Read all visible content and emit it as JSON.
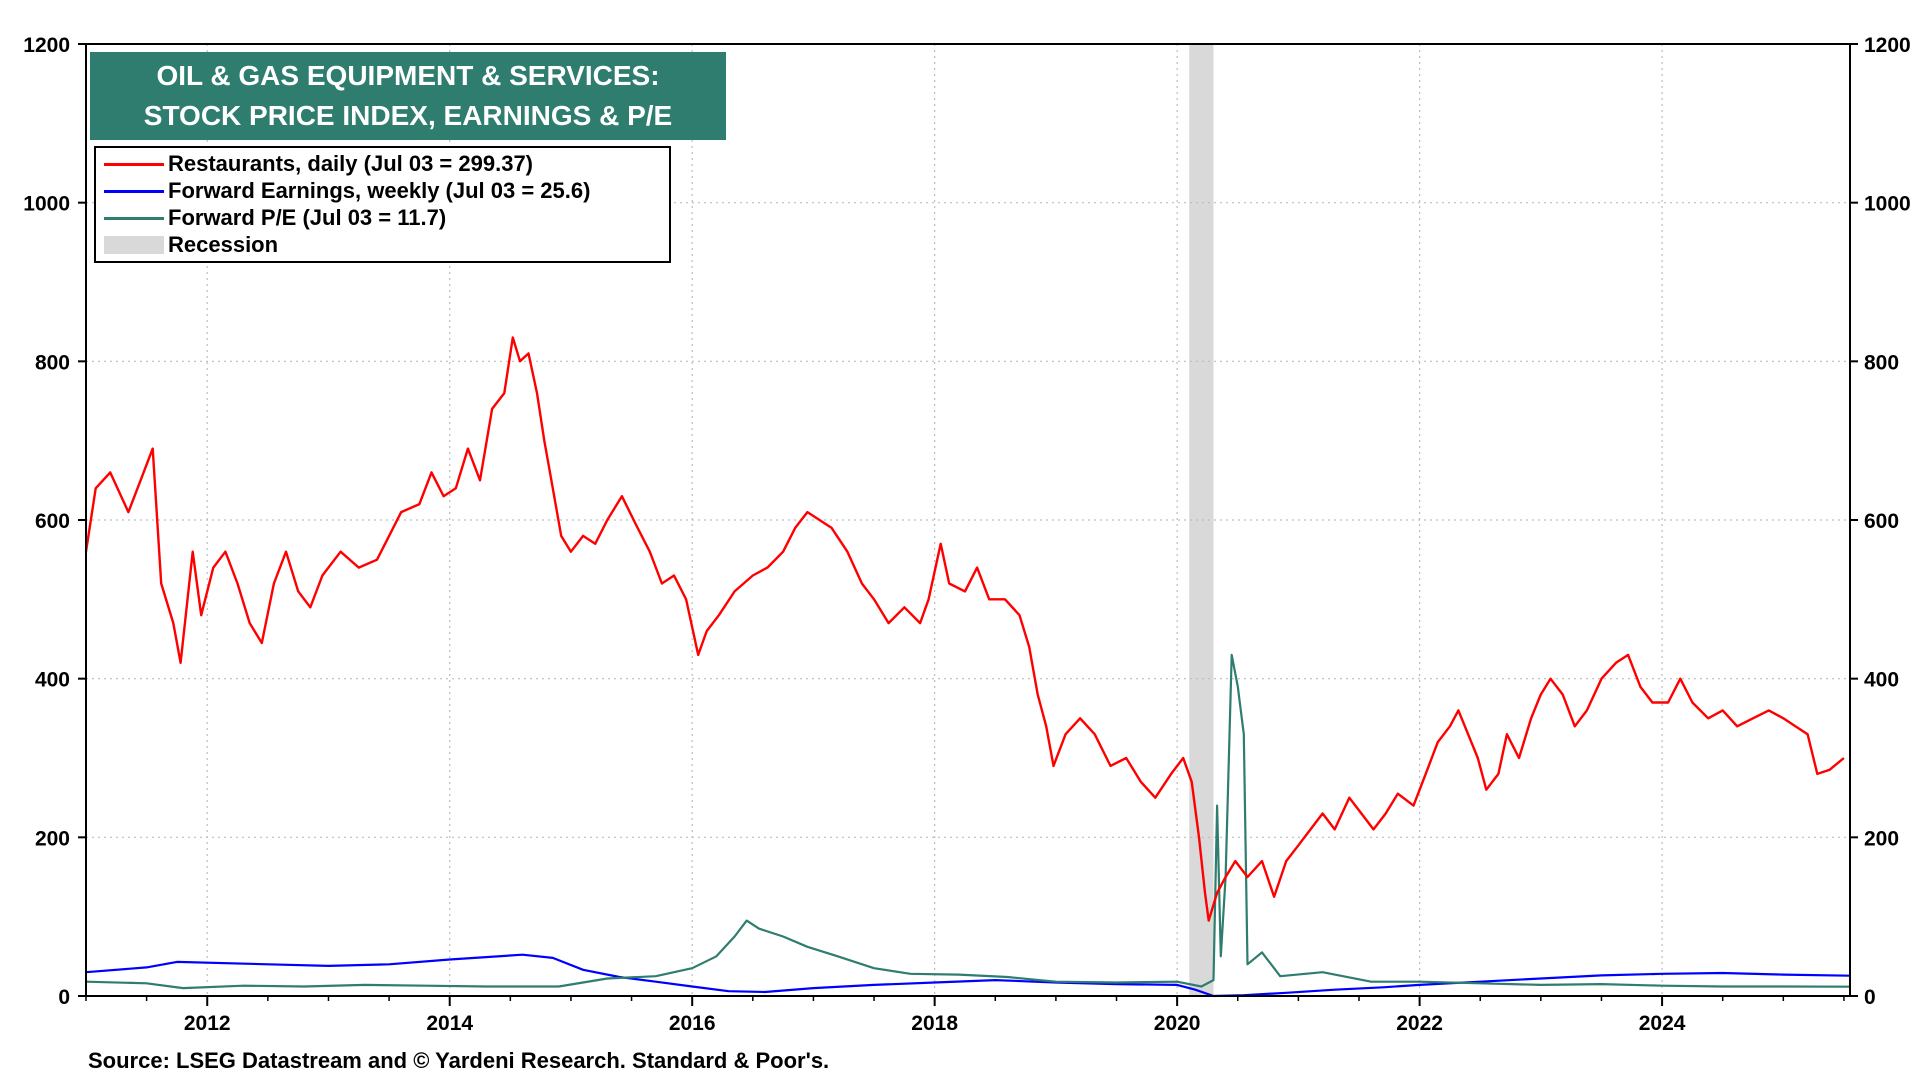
{
  "title": {
    "line1": "OIL & GAS EQUIPMENT & SERVICES:",
    "line2": "STOCK PRICE INDEX, EARNINGS & P/E"
  },
  "legend": {
    "items": [
      {
        "label": "Restaurants, daily (Jul 03 = 299.37)",
        "color": "#ff0000",
        "kind": "line"
      },
      {
        "label": "Forward Earnings, weekly (Jul 03 = 25.6)",
        "color": "#0000ff",
        "kind": "line"
      },
      {
        "label": "Forward P/E (Jul 03 = 11.7)",
        "color": "#2e7d6e",
        "kind": "line"
      },
      {
        "label": "Recession",
        "color": "#d9d9d9",
        "kind": "box"
      }
    ]
  },
  "source": "Source: LSEG Datastream and © Yardeni Research. Standard & Poor's.",
  "chart_data": {
    "type": "line",
    "x_range": [
      2011.0,
      2025.55
    ],
    "ylim": [
      0,
      1200
    ],
    "y_ticks": [
      "0",
      "200",
      "400",
      "600",
      "800",
      "1000",
      "1200"
    ],
    "x_ticks": [
      "2012",
      "2014",
      "2016",
      "2018",
      "2020",
      "2022",
      "2024"
    ],
    "grid": true,
    "legend_position": "top-left",
    "recession": [
      2020.1,
      2020.3
    ],
    "series": [
      {
        "name": "Restaurants, daily (Jul 03 = 299.37)",
        "color": "#ff0000",
        "points": [
          [
            2011.0,
            560
          ],
          [
            2011.08,
            640
          ],
          [
            2011.2,
            660
          ],
          [
            2011.35,
            610
          ],
          [
            2011.45,
            650
          ],
          [
            2011.55,
            690
          ],
          [
            2011.62,
            520
          ],
          [
            2011.72,
            470
          ],
          [
            2011.78,
            420
          ],
          [
            2011.88,
            560
          ],
          [
            2011.95,
            480
          ],
          [
            2012.05,
            540
          ],
          [
            2012.15,
            560
          ],
          [
            2012.25,
            520
          ],
          [
            2012.35,
            470
          ],
          [
            2012.45,
            445
          ],
          [
            2012.55,
            520
          ],
          [
            2012.65,
            560
          ],
          [
            2012.75,
            510
          ],
          [
            2012.85,
            490
          ],
          [
            2012.95,
            530
          ],
          [
            2013.1,
            560
          ],
          [
            2013.25,
            540
          ],
          [
            2013.4,
            550
          ],
          [
            2013.5,
            580
          ],
          [
            2013.6,
            610
          ],
          [
            2013.75,
            620
          ],
          [
            2013.85,
            660
          ],
          [
            2013.95,
            630
          ],
          [
            2014.05,
            640
          ],
          [
            2014.15,
            690
          ],
          [
            2014.25,
            650
          ],
          [
            2014.35,
            740
          ],
          [
            2014.45,
            760
          ],
          [
            2014.52,
            830
          ],
          [
            2014.58,
            800
          ],
          [
            2014.65,
            810
          ],
          [
            2014.72,
            760
          ],
          [
            2014.78,
            700
          ],
          [
            2014.85,
            640
          ],
          [
            2014.92,
            580
          ],
          [
            2015.0,
            560
          ],
          [
            2015.1,
            580
          ],
          [
            2015.2,
            570
          ],
          [
            2015.3,
            600
          ],
          [
            2015.42,
            630
          ],
          [
            2015.55,
            590
          ],
          [
            2015.65,
            560
          ],
          [
            2015.75,
            520
          ],
          [
            2015.85,
            530
          ],
          [
            2015.95,
            500
          ],
          [
            2016.05,
            430
          ],
          [
            2016.12,
            460
          ],
          [
            2016.22,
            480
          ],
          [
            2016.35,
            510
          ],
          [
            2016.5,
            530
          ],
          [
            2016.62,
            540
          ],
          [
            2016.75,
            560
          ],
          [
            2016.85,
            590
          ],
          [
            2016.95,
            610
          ],
          [
            2017.05,
            600
          ],
          [
            2017.15,
            590
          ],
          [
            2017.28,
            560
          ],
          [
            2017.4,
            520
          ],
          [
            2017.5,
            500
          ],
          [
            2017.62,
            470
          ],
          [
            2017.75,
            490
          ],
          [
            2017.88,
            470
          ],
          [
            2017.95,
            500
          ],
          [
            2018.05,
            570
          ],
          [
            2018.12,
            520
          ],
          [
            2018.25,
            510
          ],
          [
            2018.35,
            540
          ],
          [
            2018.45,
            500
          ],
          [
            2018.58,
            500
          ],
          [
            2018.7,
            480
          ],
          [
            2018.78,
            440
          ],
          [
            2018.85,
            380
          ],
          [
            2018.92,
            340
          ],
          [
            2018.98,
            290
          ],
          [
            2019.08,
            330
          ],
          [
            2019.2,
            350
          ],
          [
            2019.32,
            330
          ],
          [
            2019.45,
            290
          ],
          [
            2019.58,
            300
          ],
          [
            2019.7,
            270
          ],
          [
            2019.82,
            250
          ],
          [
            2019.95,
            280
          ],
          [
            2020.05,
            300
          ],
          [
            2020.12,
            270
          ],
          [
            2020.18,
            200
          ],
          [
            2020.23,
            130
          ],
          [
            2020.26,
            95
          ],
          [
            2020.33,
            130
          ],
          [
            2020.4,
            150
          ],
          [
            2020.48,
            170
          ],
          [
            2020.58,
            150
          ],
          [
            2020.7,
            170
          ],
          [
            2020.8,
            125
          ],
          [
            2020.9,
            170
          ],
          [
            2021.0,
            190
          ],
          [
            2021.1,
            210
          ],
          [
            2021.2,
            230
          ],
          [
            2021.3,
            210
          ],
          [
            2021.42,
            250
          ],
          [
            2021.52,
            230
          ],
          [
            2021.62,
            210
          ],
          [
            2021.72,
            230
          ],
          [
            2021.82,
            255
          ],
          [
            2021.95,
            240
          ],
          [
            2022.05,
            280
          ],
          [
            2022.15,
            320
          ],
          [
            2022.25,
            340
          ],
          [
            2022.32,
            360
          ],
          [
            2022.4,
            330
          ],
          [
            2022.48,
            300
          ],
          [
            2022.55,
            260
          ],
          [
            2022.65,
            280
          ],
          [
            2022.72,
            330
          ],
          [
            2022.82,
            300
          ],
          [
            2022.92,
            350
          ],
          [
            2023.0,
            380
          ],
          [
            2023.08,
            400
          ],
          [
            2023.18,
            380
          ],
          [
            2023.28,
            340
          ],
          [
            2023.38,
            360
          ],
          [
            2023.5,
            400
          ],
          [
            2023.62,
            420
          ],
          [
            2023.72,
            430
          ],
          [
            2023.82,
            390
          ],
          [
            2023.92,
            370
          ],
          [
            2024.05,
            370
          ],
          [
            2024.15,
            400
          ],
          [
            2024.25,
            370
          ],
          [
            2024.38,
            350
          ],
          [
            2024.5,
            360
          ],
          [
            2024.62,
            340
          ],
          [
            2024.75,
            350
          ],
          [
            2024.88,
            360
          ],
          [
            2025.0,
            350
          ],
          [
            2025.1,
            340
          ],
          [
            2025.2,
            330
          ],
          [
            2025.28,
            280
          ],
          [
            2025.38,
            285
          ],
          [
            2025.5,
            300
          ]
        ]
      },
      {
        "name": "Forward Earnings, weekly (Jul 03 = 25.6)",
        "color": "#0000ff",
        "points": [
          [
            2011.0,
            30
          ],
          [
            2011.5,
            36
          ],
          [
            2011.75,
            43
          ],
          [
            2012.5,
            40
          ],
          [
            2013.0,
            38
          ],
          [
            2013.5,
            40
          ],
          [
            2014.0,
            46
          ],
          [
            2014.6,
            52
          ],
          [
            2014.85,
            48
          ],
          [
            2015.1,
            33
          ],
          [
            2015.4,
            24
          ],
          [
            2015.7,
            18
          ],
          [
            2016.0,
            12
          ],
          [
            2016.3,
            6
          ],
          [
            2016.6,
            5
          ],
          [
            2017.0,
            10
          ],
          [
            2017.5,
            14
          ],
          [
            2018.0,
            17
          ],
          [
            2018.5,
            20
          ],
          [
            2019.0,
            17
          ],
          [
            2019.5,
            15
          ],
          [
            2020.0,
            14
          ],
          [
            2020.15,
            8
          ],
          [
            2020.3,
            0
          ],
          [
            2020.55,
            1
          ],
          [
            2020.9,
            4
          ],
          [
            2021.3,
            8
          ],
          [
            2021.7,
            11
          ],
          [
            2022.0,
            14
          ],
          [
            2022.5,
            18
          ],
          [
            2023.0,
            22
          ],
          [
            2023.5,
            26
          ],
          [
            2024.0,
            28
          ],
          [
            2024.5,
            29
          ],
          [
            2025.0,
            27
          ],
          [
            2025.55,
            25.6
          ]
        ]
      },
      {
        "name": "Forward P/E (Jul 03 = 11.7)",
        "color": "#2e7d6e",
        "points": [
          [
            2011.0,
            18
          ],
          [
            2011.5,
            16
          ],
          [
            2011.8,
            10
          ],
          [
            2012.3,
            13
          ],
          [
            2012.8,
            12
          ],
          [
            2013.3,
            14
          ],
          [
            2013.8,
            13
          ],
          [
            2014.3,
            12
          ],
          [
            2014.9,
            12
          ],
          [
            2015.3,
            22
          ],
          [
            2015.7,
            25
          ],
          [
            2016.0,
            35
          ],
          [
            2016.2,
            50
          ],
          [
            2016.35,
            75
          ],
          [
            2016.45,
            95
          ],
          [
            2016.55,
            85
          ],
          [
            2016.75,
            75
          ],
          [
            2016.95,
            62
          ],
          [
            2017.2,
            50
          ],
          [
            2017.5,
            35
          ],
          [
            2017.8,
            28
          ],
          [
            2018.2,
            27
          ],
          [
            2018.6,
            24
          ],
          [
            2019.0,
            18
          ],
          [
            2019.5,
            17
          ],
          [
            2020.0,
            18
          ],
          [
            2020.2,
            12
          ],
          [
            2020.3,
            20
          ],
          [
            2020.33,
            240
          ],
          [
            2020.36,
            50
          ],
          [
            2020.4,
            150
          ],
          [
            2020.45,
            430
          ],
          [
            2020.5,
            390
          ],
          [
            2020.55,
            330
          ],
          [
            2020.58,
            40
          ],
          [
            2020.7,
            55
          ],
          [
            2020.85,
            25
          ],
          [
            2021.2,
            30
          ],
          [
            2021.6,
            18
          ],
          [
            2022.0,
            18
          ],
          [
            2022.5,
            16
          ],
          [
            2023.0,
            14
          ],
          [
            2023.5,
            15
          ],
          [
            2024.0,
            13
          ],
          [
            2024.5,
            12
          ],
          [
            2025.0,
            12
          ],
          [
            2025.55,
            11.7
          ]
        ]
      }
    ]
  }
}
